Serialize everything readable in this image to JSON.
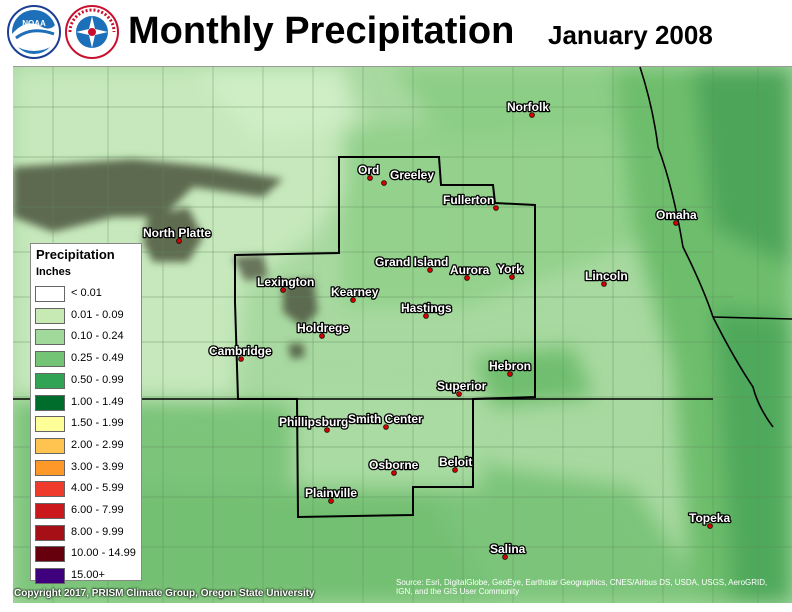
{
  "header": {
    "title": "Monthly Precipitation",
    "date": "January 2008",
    "logos": [
      {
        "name": "noaa-logo",
        "text": "NOAA"
      },
      {
        "name": "nws-logo",
        "text": "NATIONAL WEATHER SERVICE"
      }
    ]
  },
  "legend": {
    "title": "Precipitation",
    "units": "Inches",
    "items": [
      {
        "label": "< 0.01",
        "color": "#ffffff"
      },
      {
        "label": "0.01 - 0.09",
        "color": "#c7e9b4"
      },
      {
        "label": "0.10 - 0.24",
        "color": "#a1d99b"
      },
      {
        "label": "0.25 - 0.49",
        "color": "#74c476"
      },
      {
        "label": "0.50 - 0.99",
        "color": "#31a354"
      },
      {
        "label": "1.00 - 1.49",
        "color": "#006d2c"
      },
      {
        "label": "1.50 - 1.99",
        "color": "#ffff99"
      },
      {
        "label": "2.00 - 2.99",
        "color": "#fec44f"
      },
      {
        "label": "3.00 - 3.99",
        "color": "#fe9929"
      },
      {
        "label": "4.00 - 5.99",
        "color": "#ef3b2c"
      },
      {
        "label": "6.00 - 7.99",
        "color": "#cb181d"
      },
      {
        "label": "8.00 - 9.99",
        "color": "#a50f15"
      },
      {
        "label": "10.00 - 14.99",
        "color": "#67000d"
      },
      {
        "label": "15.00+",
        "color": "#3f007d"
      }
    ]
  },
  "cities": [
    {
      "name": "Norfolk"
    },
    {
      "name": "Ord"
    },
    {
      "name": "Greeley"
    },
    {
      "name": "Fullerton"
    },
    {
      "name": "North Platte"
    },
    {
      "name": "Omaha"
    },
    {
      "name": "Grand Island"
    },
    {
      "name": "Aurora"
    },
    {
      "name": "York"
    },
    {
      "name": "Lexington"
    },
    {
      "name": "Kearney"
    },
    {
      "name": "Lincoln"
    },
    {
      "name": "Hastings"
    },
    {
      "name": "Holdrege"
    },
    {
      "name": "Cambridge"
    },
    {
      "name": "Hebron"
    },
    {
      "name": "Superior"
    },
    {
      "name": "Phillipsburg"
    },
    {
      "name": "Smith Center"
    },
    {
      "name": "Osborne"
    },
    {
      "name": "Beloit"
    },
    {
      "name": "Plainville"
    },
    {
      "name": "Topeka"
    },
    {
      "name": "Salina"
    }
  ],
  "footer": {
    "copyright": "Copyright 2017, PRISM Climate Group, Oregon State University",
    "attribution": "Source: Esri, DigitalGlobe, GeoEye, Earthstar Geographics, CNES/Airbus DS, USDA, USGS, AeroGRID, IGN, and the GIS User Community"
  }
}
